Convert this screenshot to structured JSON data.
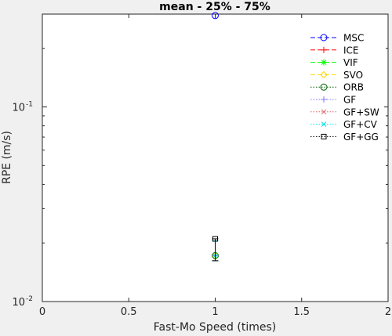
{
  "chart_data": {
    "type": "scatter",
    "title": "mean - 25% - 75%",
    "xlabel": "Fast-Mo Speed (times)",
    "ylabel": "RPE (m/s)",
    "xlim": [
      0,
      2
    ],
    "ylim": [
      0.01,
      0.3
    ],
    "yscale": "log",
    "grid": false,
    "legend_position": "top-right",
    "x_ticks": [
      0,
      0.5,
      1,
      1.5,
      2
    ],
    "x_tick_labels": [
      "0",
      "0.5",
      "1",
      "1.5",
      "2"
    ],
    "y_major_ticks": [
      0.01,
      0.1
    ],
    "y_tick_labels": [
      {
        "base": "10",
        "exp": "-2"
      },
      {
        "base": "10",
        "exp": "-1"
      }
    ],
    "series": [
      {
        "name": "MSC",
        "color": "#0000ff",
        "line": "dash",
        "marker": "circle",
        "x": [
          1
        ],
        "y": [
          0.295
        ],
        "q25": [
          0.295
        ],
        "q75": [
          0.295
        ]
      },
      {
        "name": "ICE",
        "color": "#ff0000",
        "line": "dash",
        "marker": "plus",
        "x": [
          1
        ],
        "y": [
          0.0172
        ],
        "q25": [
          0.0162
        ],
        "q75": [
          0.0205
        ]
      },
      {
        "name": "VIF",
        "color": "#00ff00",
        "line": "dash",
        "marker": "star",
        "x": [
          1
        ],
        "y": [
          0.0172
        ],
        "q25": [
          0.0162
        ],
        "q75": [
          0.0205
        ]
      },
      {
        "name": "SVO",
        "color": "#ffd700",
        "line": "dash",
        "marker": "diamond",
        "x": [
          1
        ],
        "y": [
          0.0172
        ],
        "q25": [
          0.0162
        ],
        "q75": [
          0.0205
        ]
      },
      {
        "name": "ORB",
        "color": "#006400",
        "line": "dot",
        "marker": "circle",
        "x": [
          1
        ],
        "y": [
          0.0172
        ],
        "q25": [
          0.0162
        ],
        "q75": [
          0.0205
        ]
      },
      {
        "name": "GF",
        "color": "#7b7bff",
        "line": "dot",
        "marker": "plus",
        "x": [
          1
        ],
        "y": [
          0.0172
        ],
        "q25": [
          0.0162
        ],
        "q75": [
          0.0205
        ]
      },
      {
        "name": "GF+SW",
        "color": "#e06666",
        "line": "dot",
        "marker": "x",
        "x": [
          1
        ],
        "y": [
          0.0172
        ],
        "q25": [
          0.0162
        ],
        "q75": [
          0.0205
        ]
      },
      {
        "name": "GF+CV",
        "color": "#00e5e5",
        "line": "dot",
        "marker": "x",
        "x": [
          1
        ],
        "y": [
          0.0172
        ],
        "q25": [
          0.0162
        ],
        "q75": [
          0.0205
        ]
      },
      {
        "name": "GF+GG",
        "color": "#000000",
        "line": "dot",
        "marker": "square",
        "x": [
          1
        ],
        "y": [
          0.021
        ],
        "q25": [
          0.0162
        ],
        "q75": [
          0.021
        ]
      }
    ]
  }
}
